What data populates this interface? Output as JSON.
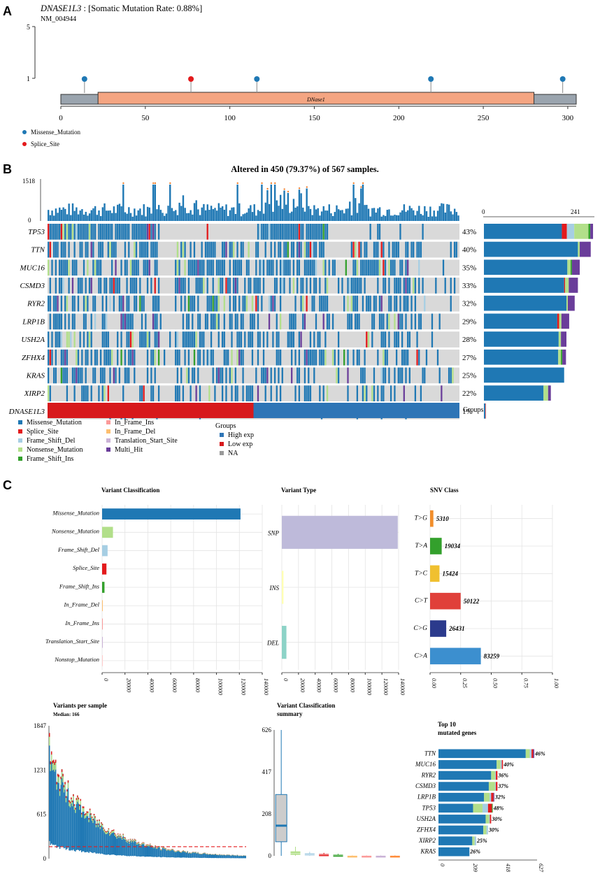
{
  "colors": {
    "missense": "#1F78B4",
    "splice": "#E31A1C",
    "fsdel": "#A6CEE3",
    "nonsense": "#B2DF8A",
    "fsins": "#33A02C",
    "ifins": "#FB9A99",
    "ifdel": "#FDBF6F",
    "tss": "#CAB2D6",
    "multi": "#6A3D9A",
    "high": "#2E75B6",
    "low": "#D7191C",
    "na": "#999999",
    "domain": "#F4A582",
    "bg": "#D9D9D9",
    "snp": "#BEBADA",
    "ins": "#FFFFB3",
    "del": "#8DD3C7",
    "tg": "#F28E2B",
    "ta": "#33A02C",
    "tc": "#F0C030",
    "ct": "#E0403A",
    "cg": "#2B3A8C",
    "ca": "#3C8FCF"
  },
  "panelA": {
    "letter": "A",
    "gene": "DNASE1L3",
    "rate": ": [Somatic Mutation Rate: 0.88%]",
    "transcript": "NM_004944",
    "domain_label": "DNase1",
    "chart_data": {
      "type": "lollipop",
      "protein_length": 305,
      "domain": [
        22,
        280
      ],
      "xlim": [
        0,
        305
      ],
      "xticks": [
        0,
        50,
        100,
        150,
        200,
        250,
        300
      ],
      "yticks": [
        1,
        5
      ],
      "mutations": [
        {
          "pos": 14,
          "count": 1,
          "type": "Missense_Mutation"
        },
        {
          "pos": 77,
          "count": 1,
          "type": "Splice_Site"
        },
        {
          "pos": 116,
          "count": 1,
          "type": "Missense_Mutation"
        },
        {
          "pos": 219,
          "count": 1,
          "type": "Missense_Mutation"
        },
        {
          "pos": 297,
          "count": 1,
          "type": "Missense_Mutation"
        }
      ]
    },
    "legend": [
      "Missense_Mutation",
      "Splice_Site"
    ]
  },
  "panelB": {
    "letter": "B",
    "title": "Altered in 450 (79.37%) of 567 samples.",
    "tmb_max": "1518",
    "tmb_min": "0",
    "side_min": "0",
    "side_max": "241",
    "groups_label": "Groups",
    "chart_data": {
      "type": "oncoplot",
      "samples": 567,
      "altered": 450,
      "genes": [
        {
          "name": "TP53",
          "pct": "43%",
          "counts": {
            "missense": 170,
            "splice": 11,
            "fsdel": 16,
            "nonsense": 31,
            "fsins": 4,
            "multi": 6
          }
        },
        {
          "name": "TTN",
          "pct": "40%",
          "counts": {
            "missense": 205,
            "nonsense": 4,
            "multi": 24
          }
        },
        {
          "name": "MUC16",
          "pct": "35%",
          "counts": {
            "missense": 182,
            "nonsense": 7,
            "fsins": 3,
            "multi": 17
          }
        },
        {
          "name": "CSMD3",
          "pct": "33%",
          "counts": {
            "missense": 175,
            "splice": 2,
            "nonsense": 8,
            "multi": 20
          }
        },
        {
          "name": "RYR2",
          "pct": "32%",
          "counts": {
            "missense": 180,
            "nonsense": 3,
            "multi": 15
          }
        },
        {
          "name": "LRP1B",
          "pct": "29%",
          "counts": {
            "missense": 160,
            "splice": 4,
            "nonsense": 5,
            "multi": 17
          }
        },
        {
          "name": "USH2A",
          "pct": "28%",
          "counts": {
            "missense": 163,
            "nonsense": 5,
            "multi": 12
          }
        },
        {
          "name": "ZFHX4",
          "pct": "27%",
          "counts": {
            "missense": 162,
            "nonsense": 6,
            "fsins": 3,
            "multi": 8
          }
        },
        {
          "name": "KRAS",
          "pct": "25%",
          "counts": {
            "missense": 175
          }
        },
        {
          "name": "XIRP2",
          "pct": "22%",
          "counts": {
            "missense": 130,
            "nonsense": 10,
            "multi": 6
          }
        },
        {
          "name": "DNASE1L3",
          "pct": "1%",
          "counts": {
            "missense": 3,
            "splice": 1
          }
        }
      ],
      "groups": {
        "low_exp_fraction": 0.5
      }
    },
    "legend_mut": [
      "Missense_Mutation",
      "Splice_Site",
      "Frame_Shift_Del",
      "Nonsense_Mutation",
      "Frame_Shift_Ins",
      "In_Frame_Ins",
      "In_Frame_Del",
      "Translation_Start_Site",
      "Multi_Hit"
    ],
    "legend_groups_title": "Groups",
    "legend_groups": [
      "High exp",
      "Low exp",
      "NA"
    ]
  },
  "panelC": {
    "letter": "C",
    "vc": {
      "title": "Variant Classification",
      "chart_data": {
        "type": "bar",
        "orientation": "horizontal",
        "categories": [
          "Missense_Mutation",
          "Nonsense_Mutation",
          "Frame_Shift_Del",
          "Splice_Site",
          "Frame_Shift_Ins",
          "In_Frame_Del",
          "In_Frame_Ins",
          "Translation_Start_Site",
          "Nonstop_Mutation"
        ],
        "values": [
          121000,
          9500,
          4800,
          3800,
          2100,
          350,
          350,
          250,
          200
        ],
        "xlim": [
          0,
          140000
        ],
        "xticks": [
          "0",
          "20000",
          "40000",
          "60000",
          "80000",
          "100000",
          "120000",
          "140000"
        ]
      }
    },
    "vt": {
      "title": "Variant Type",
      "chart_data": {
        "type": "bar",
        "orientation": "horizontal",
        "categories": [
          "SNP",
          "INS",
          "DEL"
        ],
        "values": [
          139000,
          2000,
          5500
        ],
        "xlim": [
          0,
          140000
        ],
        "xticks": [
          "0",
          "20000",
          "40000",
          "60000",
          "80000",
          "100000",
          "120000",
          "140000"
        ]
      }
    },
    "snv": {
      "title": "SNV Class",
      "chart_data": {
        "type": "bar",
        "orientation": "horizontal",
        "categories": [
          "T>G",
          "T>A",
          "T>C",
          "C>T",
          "C>G",
          "C>A"
        ],
        "values": [
          5310,
          19034,
          15424,
          50122,
          26431,
          83259
        ],
        "fractions": [
          0.027,
          0.095,
          0.077,
          0.25,
          0.132,
          0.415
        ],
        "labels": [
          "5310",
          "19034",
          "15424",
          "50122",
          "26431",
          "83259"
        ],
        "xlim": [
          0,
          1
        ],
        "xticks": [
          "0.00",
          "0.25",
          "0.50",
          "0.75",
          "1.00"
        ]
      }
    },
    "vps": {
      "title": "Variants per sample",
      "subtitle": "Median: 166",
      "chart_data": {
        "type": "stacked_bar",
        "y_ticks": [
          "0",
          "615",
          "1231",
          "1847"
        ],
        "ylim": [
          0,
          1847
        ],
        "median": 166,
        "samples": 567
      }
    },
    "vcs": {
      "title": "Variant Classification",
      "title2": "summary",
      "chart_data": {
        "type": "boxplot",
        "y_ticks": [
          "0",
          "208",
          "417",
          "626"
        ],
        "ylim": [
          0,
          626
        ],
        "boxes": [
          {
            "cat": "Missense_Mutation",
            "min": 0,
            "q1": 70,
            "med": 150,
            "q3": 305,
            "max": 626
          },
          {
            "cat": "Nonsense_Mutation",
            "min": 0,
            "q1": 5,
            "med": 12,
            "q3": 22,
            "max": 45
          },
          {
            "cat": "Frame_Shift_Del",
            "min": 0,
            "q1": 3,
            "med": 6,
            "q3": 12,
            "max": 20
          },
          {
            "cat": "Splice_Site",
            "min": 0,
            "q1": 2,
            "med": 5,
            "q3": 9,
            "max": 15
          },
          {
            "cat": "Frame_Shift_Ins",
            "min": 0,
            "q1": 1,
            "med": 3,
            "q3": 6,
            "max": 10
          },
          {
            "cat": "In_Frame_Del",
            "min": 0,
            "q1": 0,
            "med": 1,
            "q3": 2,
            "max": 4
          },
          {
            "cat": "In_Frame_Ins",
            "min": 0,
            "q1": 0,
            "med": 1,
            "q3": 2,
            "max": 4
          },
          {
            "cat": "Translation_Start_Site",
            "min": 0,
            "q1": 0,
            "med": 1,
            "q3": 2,
            "max": 4
          },
          {
            "cat": "Nonstop_Mutation",
            "min": 0,
            "q1": 0,
            "med": 1,
            "q3": 2,
            "max": 4
          }
        ]
      }
    },
    "top10": {
      "title": "Top 10",
      "title2": "mutated genes",
      "chart_data": {
        "type": "stacked_bar",
        "orientation": "horizontal",
        "xlim": [
          0,
          627
        ],
        "xticks": [
          "0",
          "209",
          "418",
          "627"
        ],
        "genes": [
          {
            "name": "TTN",
            "total": 609,
            "segs": {
              "missense": 555,
              "nonsense": 25,
              "fsdel": 12,
              "splice": 10,
              "multi": 7
            },
            "label": "46%"
          },
          {
            "name": "MUC16",
            "total": 410,
            "segs": {
              "missense": 370,
              "nonsense": 25,
              "fsdel": 8,
              "splice": 7
            },
            "label": "40%"
          },
          {
            "name": "RYR2",
            "total": 375,
            "segs": {
              "missense": 335,
              "nonsense": 25,
              "splice": 10,
              "fsdel": 5
            },
            "label": "36%"
          },
          {
            "name": "CSMD3",
            "total": 375,
            "segs": {
              "missense": 320,
              "nonsense": 40,
              "splice": 10,
              "fsdel": 5
            },
            "label": "37%"
          },
          {
            "name": "LRP1B",
            "total": 355,
            "segs": {
              "missense": 290,
              "nonsense": 35,
              "fsdel": 10,
              "splice": 15,
              "multi": 5
            },
            "label": "32%"
          },
          {
            "name": "TP53",
            "total": 345,
            "segs": {
              "missense": 220,
              "nonsense": 60,
              "fsdel": 35,
              "splice": 25,
              "fsins": 5
            },
            "label": "48%"
          },
          {
            "name": "USH2A",
            "total": 335,
            "segs": {
              "missense": 300,
              "nonsense": 22,
              "splice": 8,
              "fsdel": 5
            },
            "label": "30%"
          },
          {
            "name": "ZFHX4",
            "total": 315,
            "segs": {
              "missense": 285,
              "nonsense": 20,
              "fsdel": 10
            },
            "label": "30%"
          },
          {
            "name": "XIRP2",
            "total": 240,
            "segs": {
              "missense": 215,
              "nonsense": 15,
              "fsdel": 10
            },
            "label": "25%"
          },
          {
            "name": "KRAS",
            "total": 197,
            "segs": {
              "missense": 197
            },
            "label": "26%"
          }
        ]
      }
    }
  }
}
